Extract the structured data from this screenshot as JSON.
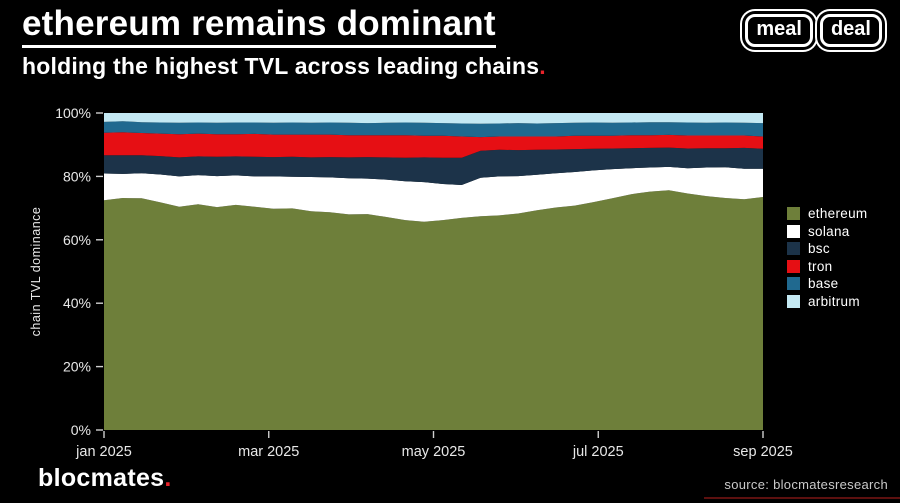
{
  "header": {
    "title": "ethereum remains dominant",
    "subtitle": "holding the highest TVL across leading chains",
    "subtitle_period": ".",
    "logo_words": [
      "meal",
      "deal"
    ]
  },
  "colors": {
    "background": "#000000",
    "text": "#ffffff",
    "accent_red": "#e8232a",
    "tick_text": "#e8e8e8",
    "footer_line_red": "#5c100f"
  },
  "chart_data": {
    "type": "area",
    "stacked": true,
    "units": "percent of total TVL",
    "title": "ethereum remains dominant",
    "xlabel": "",
    "ylabel": "chain TVL dominance",
    "ylim": [
      0,
      100
    ],
    "grid": false,
    "legend_position": "right",
    "y_ticks": [
      0,
      20,
      40,
      60,
      80,
      100
    ],
    "y_tick_labels": [
      "0%",
      "20%",
      "40%",
      "60%",
      "80%",
      "100%"
    ],
    "x_tick_labels": [
      "jan 2025",
      "mar 2025",
      "may 2025",
      "jul 2025",
      "sep 2025"
    ],
    "x_range": [
      "jan 2025",
      "sep 2025"
    ],
    "series": [
      {
        "name": "ethereum",
        "color": "#6e7f3a",
        "values": [
          72.5,
          73.2,
          73.1,
          71.8,
          70.4,
          71.2,
          70.3,
          71.0,
          70.4,
          69.8,
          69.9,
          69.0,
          68.7,
          68.0,
          68.1,
          67.2,
          66.2,
          65.7,
          66.2,
          66.9,
          67.4,
          67.7,
          68.3,
          69.3,
          70.2,
          70.8,
          71.9,
          73.1,
          74.4,
          75.2,
          75.6,
          74.6,
          73.8,
          73.2,
          72.8,
          73.5
        ]
      },
      {
        "name": "solana",
        "color": "#ffffff",
        "values": [
          8.4,
          7.6,
          7.9,
          8.8,
          9.6,
          9.2,
          9.8,
          9.3,
          9.6,
          10.2,
          10.0,
          10.8,
          11.0,
          11.4,
          11.2,
          11.8,
          12.3,
          12.5,
          11.4,
          10.4,
          12.2,
          12.3,
          11.8,
          11.2,
          10.8,
          10.6,
          10.0,
          9.2,
          8.2,
          7.6,
          7.4,
          8.0,
          9.0,
          9.7,
          9.6,
          8.9
        ]
      },
      {
        "name": "bsc",
        "color": "#1c3349",
        "values": [
          5.8,
          5.9,
          5.7,
          5.8,
          6.0,
          5.9,
          6.1,
          6.0,
          6.2,
          6.1,
          6.3,
          6.2,
          6.4,
          6.6,
          6.8,
          7.0,
          7.4,
          7.8,
          8.3,
          8.6,
          8.5,
          8.4,
          8.2,
          7.9,
          7.5,
          7.2,
          6.8,
          6.5,
          6.3,
          6.2,
          6.1,
          6.2,
          6.1,
          6.0,
          6.6,
          6.3
        ]
      },
      {
        "name": "tron",
        "color": "#e60f14",
        "values": [
          7.1,
          7.2,
          7.0,
          7.1,
          7.3,
          7.2,
          7.1,
          7.0,
          7.2,
          7.1,
          7.0,
          7.2,
          7.1,
          7.0,
          6.9,
          7.0,
          7.1,
          6.8,
          6.9,
          6.7,
          4.3,
          4.2,
          4.3,
          4.2,
          4.1,
          4.2,
          4.1,
          4.0,
          4.1,
          4.0,
          4.0,
          4.1,
          4.0,
          4.0,
          3.9,
          3.9
        ]
      },
      {
        "name": "base",
        "color": "#20698f",
        "values": [
          3.4,
          3.5,
          3.4,
          3.5,
          3.6,
          3.5,
          3.6,
          3.7,
          3.6,
          3.7,
          3.8,
          3.7,
          3.8,
          3.9,
          3.8,
          3.9,
          4.0,
          4.1,
          4.0,
          4.1,
          4.2,
          4.1,
          4.2,
          4.1,
          4.2,
          4.1,
          4.2,
          4.1,
          4.0,
          4.1,
          4.0,
          4.1,
          4.0,
          4.1,
          4.0,
          4.2
        ]
      },
      {
        "name": "arbitrum",
        "color": "#c4e9f3",
        "values": [
          2.8,
          2.6,
          2.9,
          3.0,
          3.1,
          3.0,
          3.1,
          3.0,
          3.0,
          3.1,
          3.0,
          3.1,
          3.0,
          3.1,
          3.2,
          3.1,
          3.0,
          3.1,
          3.2,
          3.3,
          3.4,
          3.3,
          3.2,
          3.3,
          3.2,
          3.1,
          3.0,
          3.1,
          3.0,
          2.9,
          2.9,
          3.0,
          3.1,
          3.0,
          3.1,
          3.2
        ]
      }
    ]
  },
  "footer": {
    "brand": "blocmates",
    "brand_period": ".",
    "source": "source: blocmatesresearch"
  }
}
